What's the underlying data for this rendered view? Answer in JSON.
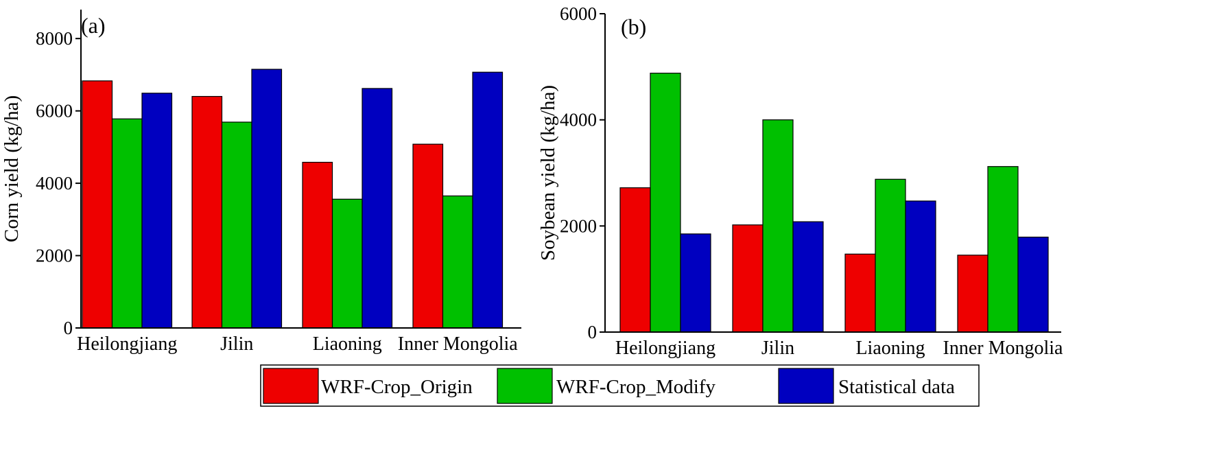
{
  "chart_data": [
    {
      "panel": "(a)",
      "type": "bar",
      "ylabel": "Corn yield (kg/ha)",
      "xlabel": "",
      "ylim": [
        0,
        8800
      ],
      "yticks": [
        0,
        2000,
        4000,
        6000,
        8000
      ],
      "categories": [
        "Heilongjiang",
        "Jilin",
        "Liaoning",
        "Inner Mongolia"
      ],
      "series": [
        {
          "name": "WRF-Crop_Origin",
          "color": "#ee0000",
          "values": [
            6830,
            6400,
            4580,
            5080
          ]
        },
        {
          "name": "WRF-Crop_Modify",
          "color": "#00c000",
          "values": [
            5780,
            5690,
            3560,
            3650
          ]
        },
        {
          "name": "Statistical data",
          "color": "#0000c0",
          "values": [
            6490,
            7150,
            6620,
            7070
          ]
        }
      ],
      "grid": false
    },
    {
      "panel": "(b)",
      "type": "bar",
      "ylabel": "Soybean yield (kg/ha)",
      "xlabel": "",
      "ylim": [
        0,
        6000
      ],
      "yticks": [
        0,
        2000,
        4000,
        6000
      ],
      "categories": [
        "Heilongjiang",
        "Jilin",
        "Liaoning",
        "Inner Mongolia"
      ],
      "series": [
        {
          "name": "WRF-Crop_Origin",
          "color": "#ee0000",
          "values": [
            2720,
            2020,
            1470,
            1450
          ]
        },
        {
          "name": "WRF-Crop_Modify",
          "color": "#00c000",
          "values": [
            4880,
            4000,
            2880,
            3120
          ]
        },
        {
          "name": "Statistical data",
          "color": "#0000c0",
          "values": [
            1850,
            2080,
            2470,
            1790
          ]
        }
      ],
      "grid": false
    }
  ],
  "legend": {
    "position": "bottom-center",
    "entries": [
      {
        "name": "WRF-Crop_Origin",
        "color": "#ee0000"
      },
      {
        "name": "WRF-Crop_Modify",
        "color": "#00c000"
      },
      {
        "name": "Statistical data",
        "color": "#0000c0"
      }
    ]
  }
}
